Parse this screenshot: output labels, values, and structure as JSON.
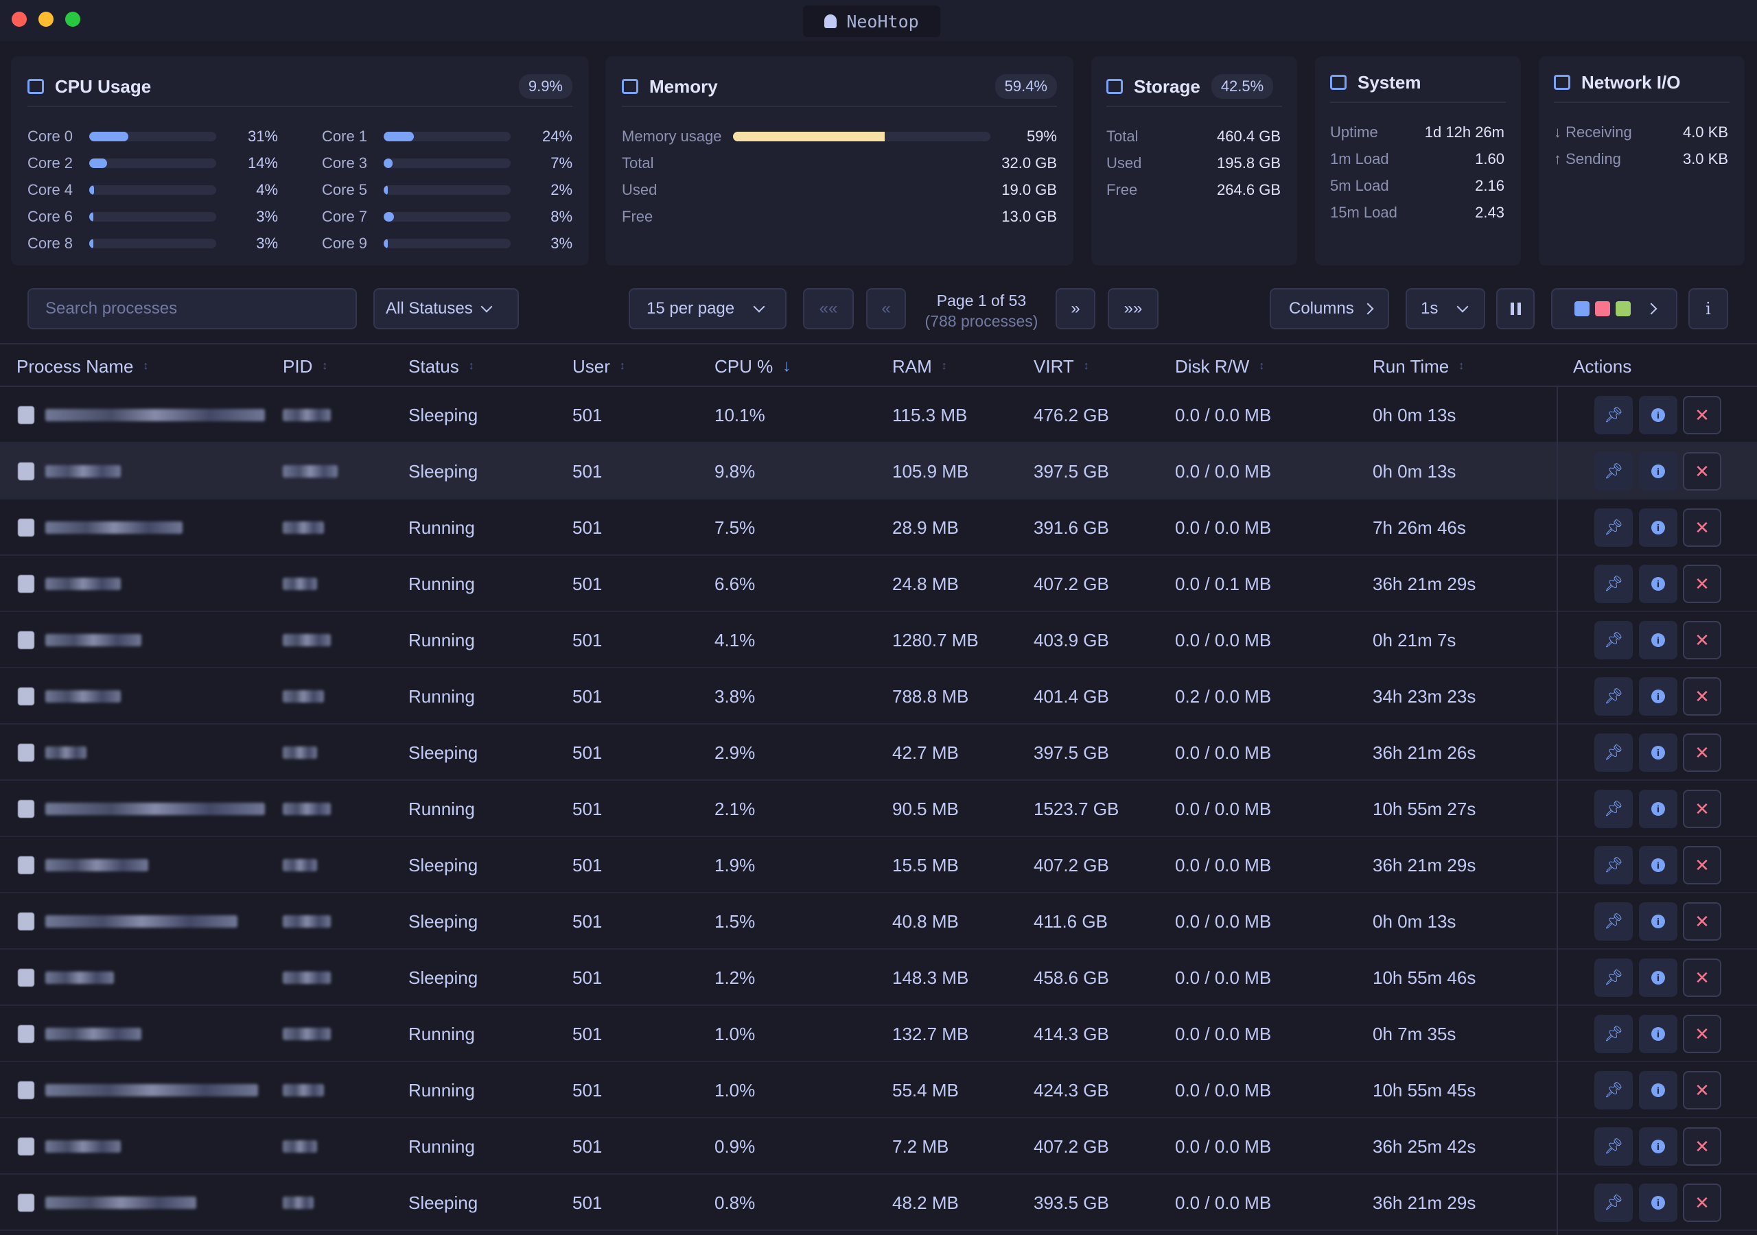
{
  "window": {
    "title": "NeoHtop"
  },
  "cpu": {
    "title": "CPU Usage",
    "total": "9.9%",
    "cores": [
      {
        "label": "Core 0",
        "pct": "31%",
        "value": 31
      },
      {
        "label": "Core 1",
        "pct": "24%",
        "value": 24
      },
      {
        "label": "Core 2",
        "pct": "14%",
        "value": 14
      },
      {
        "label": "Core 3",
        "pct": "7%",
        "value": 7
      },
      {
        "label": "Core 4",
        "pct": "4%",
        "value": 4
      },
      {
        "label": "Core 5",
        "pct": "2%",
        "value": 2
      },
      {
        "label": "Core 6",
        "pct": "3%",
        "value": 3
      },
      {
        "label": "Core 7",
        "pct": "8%",
        "value": 8
      },
      {
        "label": "Core 8",
        "pct": "3%",
        "value": 3
      },
      {
        "label": "Core 9",
        "pct": "3%",
        "value": 3
      }
    ]
  },
  "memory": {
    "title": "Memory",
    "total_pct": "59.4%",
    "usage_label": "Memory usage",
    "usage_pct": "59%",
    "usage_value": 59,
    "rows": [
      {
        "k": "Total",
        "v": "32.0 GB"
      },
      {
        "k": "Used",
        "v": "19.0 GB"
      },
      {
        "k": "Free",
        "v": "13.0 GB"
      }
    ]
  },
  "storage": {
    "title": "Storage",
    "pct": "42.5%",
    "rows": [
      {
        "k": "Total",
        "v": "460.4 GB"
      },
      {
        "k": "Used",
        "v": "195.8 GB"
      },
      {
        "k": "Free",
        "v": "264.6 GB"
      }
    ]
  },
  "system": {
    "title": "System",
    "rows": [
      {
        "k": "Uptime",
        "v": "1d 12h 26m"
      },
      {
        "k": "1m Load",
        "v": "1.60"
      },
      {
        "k": "5m Load",
        "v": "2.16"
      },
      {
        "k": "15m Load",
        "v": "2.43"
      }
    ]
  },
  "network": {
    "title": "Network I/O",
    "rows": [
      {
        "k": "↓ Receiving",
        "v": "4.0 KB"
      },
      {
        "k": "↑ Sending",
        "v": "3.0 KB"
      }
    ]
  },
  "toolbar": {
    "search_placeholder": "Search processes",
    "status_filter": "All Statuses",
    "per_page": "15 per page",
    "first": "««",
    "prev": "«",
    "page_info": "Page 1 of 53",
    "process_count": "(788 processes)",
    "next": "»",
    "last": "»»",
    "columns": "Columns",
    "refresh": "1s",
    "info": "i",
    "theme_colors": [
      "#7aa2f7",
      "#f7768e",
      "#9ece6a"
    ]
  },
  "columns": [
    "Process Name",
    "PID",
    "Status",
    "User",
    "CPU %",
    "RAM",
    "VIRT",
    "Disk R/W",
    "Run Time",
    "Actions"
  ],
  "rows": [
    {
      "status": "Sleeping",
      "user": "501",
      "cpu": "10.1%",
      "ram": "115.3 MB",
      "virt": "476.2 GB",
      "disk": "0.0 / 0.0 MB",
      "runtime": "0h 0m 13s"
    },
    {
      "status": "Sleeping",
      "user": "501",
      "cpu": "9.8%",
      "ram": "105.9 MB",
      "virt": "397.5 GB",
      "disk": "0.0 / 0.0 MB",
      "runtime": "0h 0m 13s"
    },
    {
      "status": "Running",
      "user": "501",
      "cpu": "7.5%",
      "ram": "28.9 MB",
      "virt": "391.6 GB",
      "disk": "0.0 / 0.0 MB",
      "runtime": "7h 26m 46s"
    },
    {
      "status": "Running",
      "user": "501",
      "cpu": "6.6%",
      "ram": "24.8 MB",
      "virt": "407.2 GB",
      "disk": "0.0 / 0.1 MB",
      "runtime": "36h 21m 29s"
    },
    {
      "status": "Running",
      "user": "501",
      "cpu": "4.1%",
      "ram": "1280.7 MB",
      "virt": "403.9 GB",
      "disk": "0.0 / 0.0 MB",
      "runtime": "0h 21m 7s"
    },
    {
      "status": "Running",
      "user": "501",
      "cpu": "3.8%",
      "ram": "788.8 MB",
      "virt": "401.4 GB",
      "disk": "0.2 / 0.0 MB",
      "runtime": "34h 23m 23s"
    },
    {
      "status": "Sleeping",
      "user": "501",
      "cpu": "2.9%",
      "ram": "42.7 MB",
      "virt": "397.5 GB",
      "disk": "0.0 / 0.0 MB",
      "runtime": "36h 21m 26s"
    },
    {
      "status": "Running",
      "user": "501",
      "cpu": "2.1%",
      "ram": "90.5 MB",
      "virt": "1523.7 GB",
      "disk": "0.0 / 0.0 MB",
      "runtime": "10h 55m 27s"
    },
    {
      "status": "Sleeping",
      "user": "501",
      "cpu": "1.9%",
      "ram": "15.5 MB",
      "virt": "407.2 GB",
      "disk": "0.0 / 0.0 MB",
      "runtime": "36h 21m 29s"
    },
    {
      "status": "Sleeping",
      "user": "501",
      "cpu": "1.5%",
      "ram": "40.8 MB",
      "virt": "411.6 GB",
      "disk": "0.0 / 0.0 MB",
      "runtime": "0h 0m 13s"
    },
    {
      "status": "Sleeping",
      "user": "501",
      "cpu": "1.2%",
      "ram": "148.3 MB",
      "virt": "458.6 GB",
      "disk": "0.0 / 0.0 MB",
      "runtime": "10h 55m 46s"
    },
    {
      "status": "Running",
      "user": "501",
      "cpu": "1.0%",
      "ram": "132.7 MB",
      "virt": "414.3 GB",
      "disk": "0.0 / 0.0 MB",
      "runtime": "0h 7m 35s"
    },
    {
      "status": "Running",
      "user": "501",
      "cpu": "1.0%",
      "ram": "55.4 MB",
      "virt": "424.3 GB",
      "disk": "0.0 / 0.0 MB",
      "runtime": "10h 55m 45s"
    },
    {
      "status": "Running",
      "user": "501",
      "cpu": "0.9%",
      "ram": "7.2 MB",
      "virt": "407.2 GB",
      "disk": "0.0 / 0.0 MB",
      "runtime": "36h 25m 42s"
    },
    {
      "status": "Sleeping",
      "user": "501",
      "cpu": "0.8%",
      "ram": "48.2 MB",
      "virt": "393.5 GB",
      "disk": "0.0 / 0.0 MB",
      "runtime": "36h 21m 29s"
    }
  ],
  "colors": {
    "accent": "#7aa2f7",
    "danger": "#f7768e",
    "memory": "#f5e0a6",
    "background": "#1a1b26"
  }
}
